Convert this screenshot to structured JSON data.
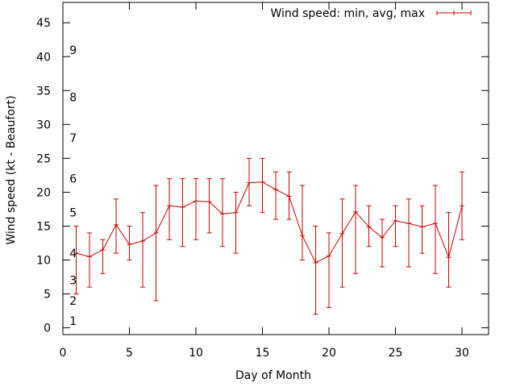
{
  "chart_data": {
    "type": "line",
    "title": "",
    "xlabel": "Day of Month",
    "ylabel": "Wind speed (kt - Beaufort)",
    "xlim": [
      0,
      32
    ],
    "ylim": [
      -1,
      48
    ],
    "x_ticks": [
      0,
      5,
      10,
      15,
      20,
      25,
      30
    ],
    "y_ticks": [
      0,
      5,
      10,
      15,
      20,
      25,
      30,
      35,
      40,
      45
    ],
    "beaufort_labels": [
      {
        "label": "1",
        "y": 1
      },
      {
        "label": "2",
        "y": 4
      },
      {
        "label": "3",
        "y": 7
      },
      {
        "label": "4",
        "y": 11
      },
      {
        "label": "5",
        "y": 17
      },
      {
        "label": "6",
        "y": 22
      },
      {
        "label": "7",
        "y": 28
      },
      {
        "label": "8",
        "y": 34
      },
      {
        "label": "9",
        "y": 41
      }
    ],
    "legend_position": "top-right",
    "grid": false,
    "series": [
      {
        "name": "Wind speed: min, avg, max",
        "color": "#cc0000",
        "points": [
          {
            "x": 1,
            "avg": 11.0,
            "min": 5,
            "max": 15
          },
          {
            "x": 2,
            "avg": 10.5,
            "min": 6,
            "max": 14
          },
          {
            "x": 3,
            "avg": 11.5,
            "min": 8,
            "max": 13
          },
          {
            "x": 4,
            "avg": 15.2,
            "min": 11,
            "max": 19
          },
          {
            "x": 5,
            "avg": 12.3,
            "min": 10,
            "max": 15
          },
          {
            "x": 6,
            "avg": 12.8,
            "min": 6,
            "max": 17
          },
          {
            "x": 7,
            "avg": 14.0,
            "min": 4,
            "max": 21
          },
          {
            "x": 8,
            "avg": 18.0,
            "min": 13,
            "max": 22
          },
          {
            "x": 9,
            "avg": 17.8,
            "min": 12,
            "max": 22
          },
          {
            "x": 10,
            "avg": 18.7,
            "min": 13,
            "max": 22
          },
          {
            "x": 11,
            "avg": 18.6,
            "min": 14,
            "max": 22
          },
          {
            "x": 12,
            "avg": 16.8,
            "min": 12,
            "max": 22
          },
          {
            "x": 13,
            "avg": 17.0,
            "min": 11,
            "max": 20
          },
          {
            "x": 14,
            "avg": 21.4,
            "min": 18,
            "max": 25
          },
          {
            "x": 15,
            "avg": 21.5,
            "min": 17,
            "max": 25
          },
          {
            "x": 16,
            "avg": 20.4,
            "min": 16,
            "max": 23
          },
          {
            "x": 17,
            "avg": 19.4,
            "min": 16,
            "max": 23
          },
          {
            "x": 18,
            "avg": 13.6,
            "min": 10,
            "max": 21
          },
          {
            "x": 19,
            "avg": 9.6,
            "min": 2,
            "max": 15
          },
          {
            "x": 20,
            "avg": 10.6,
            "min": 3,
            "max": 14
          },
          {
            "x": 21,
            "avg": 13.9,
            "min": 6,
            "max": 19
          },
          {
            "x": 22,
            "avg": 17.1,
            "min": 8,
            "max": 21
          },
          {
            "x": 23,
            "avg": 14.9,
            "min": 12,
            "max": 18
          },
          {
            "x": 24,
            "avg": 13.3,
            "min": 9,
            "max": 16
          },
          {
            "x": 25,
            "avg": 15.8,
            "min": 12,
            "max": 18
          },
          {
            "x": 26,
            "avg": 15.4,
            "min": 9,
            "max": 19
          },
          {
            "x": 27,
            "avg": 14.9,
            "min": 11,
            "max": 18
          },
          {
            "x": 28,
            "avg": 15.4,
            "min": 8,
            "max": 21
          },
          {
            "x": 29,
            "avg": 10.4,
            "min": 6,
            "max": 17
          },
          {
            "x": 30,
            "avg": 18.0,
            "min": 13,
            "max": 23
          }
        ]
      }
    ]
  }
}
